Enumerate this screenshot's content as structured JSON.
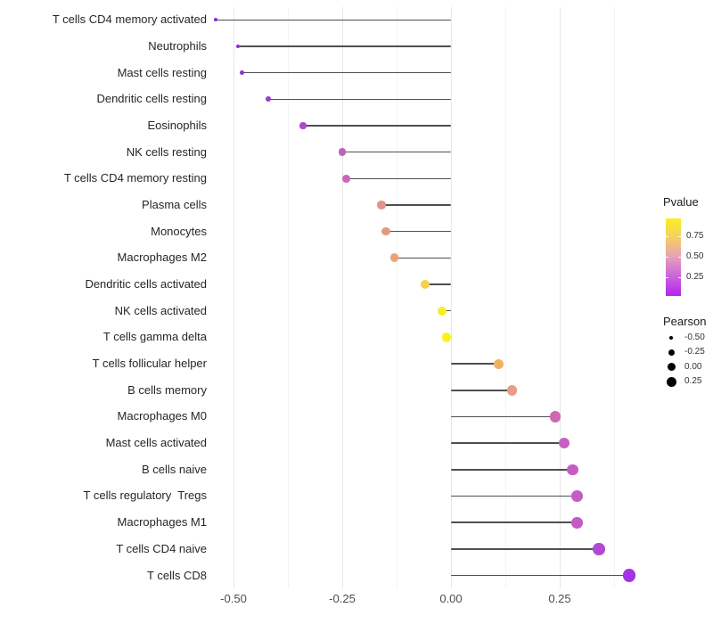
{
  "chart_data": {
    "type": "scatter",
    "subtype": "lollipop",
    "orientation": "horizontal",
    "title": "",
    "xlabel": "",
    "ylabel": "",
    "xlim": [
      -0.58,
      0.46
    ],
    "grid": "vertical major and minor, no axis lines",
    "legend_position": "right",
    "stem_color": "#4f4f4f",
    "x_ticks": [
      {
        "label": "-0.50",
        "value": -0.5
      },
      {
        "label": "-0.25",
        "value": -0.25
      },
      {
        "label": "0.00",
        "value": 0.0
      },
      {
        "label": "0.25",
        "value": 0.25
      }
    ],
    "minor_grid_values": [
      -0.375,
      -0.125,
      0.125,
      0.375
    ],
    "categories": [
      "T cells CD4 memory activated",
      "Neutrophils",
      "Mast cells resting",
      "Dendritic cells resting",
      "Eosinophils",
      "NK cells resting",
      "T cells CD4 memory resting",
      "Plasma cells",
      "Monocytes",
      "Macrophages M2",
      "Dendritic cells activated",
      "NK cells activated",
      "T cells gamma delta",
      "T cells follicular helper",
      "B cells memory",
      "Macrophages M0",
      "Mast cells activated",
      "B cells naive",
      "T cells regulatory  Tregs",
      "Macrophages M1",
      "T cells CD4 naive",
      "T cells CD8"
    ],
    "series": [
      {
        "name": "Pearson",
        "points": [
          {
            "category": "T cells CD4 memory activated",
            "pearson": -0.54,
            "color": "#8826de",
            "radius": 2.0
          },
          {
            "category": "Neutrophils",
            "pearson": -0.49,
            "color": "#8f2bda",
            "radius": 2.3
          },
          {
            "category": "Mast cells resting",
            "pearson": -0.48,
            "color": "#9530d7",
            "radius": 2.4
          },
          {
            "category": "Dendritic cells resting",
            "pearson": -0.42,
            "color": "#a039d2",
            "radius": 2.9
          },
          {
            "category": "Eosinophils",
            "pearson": -0.34,
            "color": "#ae48cb",
            "radius": 3.6
          },
          {
            "category": "NK cells resting",
            "pearson": -0.25,
            "color": "#c260c1",
            "radius": 4.3
          },
          {
            "category": "T cells CD4 memory resting",
            "pearson": -0.24,
            "color": "#c868bc",
            "radius": 4.4
          },
          {
            "category": "Plasma cells",
            "pearson": -0.16,
            "color": "#e2928c",
            "radius": 4.7
          },
          {
            "category": "Monocytes",
            "pearson": -0.15,
            "color": "#e39a84",
            "radius": 4.75
          },
          {
            "category": "Macrophages M2",
            "pearson": -0.13,
            "color": "#eba471",
            "radius": 4.9
          },
          {
            "category": "Dendritic cells activated",
            "pearson": -0.06,
            "color": "#f2d24e",
            "radius": 5.1
          },
          {
            "category": "NK cells activated",
            "pearson": -0.02,
            "color": "#f6ee26",
            "radius": 5.2
          },
          {
            "category": "T cells gamma delta",
            "pearson": -0.01,
            "color": "#f8f21d",
            "radius": 5.25
          },
          {
            "category": "T cells follicular helper",
            "pearson": 0.11,
            "color": "#f0b163",
            "radius": 5.6
          },
          {
            "category": "B cells memory",
            "pearson": 0.14,
            "color": "#e89d86",
            "radius": 5.8
          },
          {
            "category": "Macrophages M0",
            "pearson": 0.24,
            "color": "#cc68b6",
            "radius": 6.1
          },
          {
            "category": "Mast cells activated",
            "pearson": 0.26,
            "color": "#c761c0",
            "radius": 6.2
          },
          {
            "category": "B cells naive",
            "pearson": 0.28,
            "color": "#c55cc4",
            "radius": 6.3
          },
          {
            "category": "T cells regulatory  Tregs",
            "pearson": 0.29,
            "color": "#c45cc6",
            "radius": 6.35
          },
          {
            "category": "Macrophages M1",
            "pearson": 0.29,
            "color": "#c35ac8",
            "radius": 6.4
          },
          {
            "category": "T cells CD4 naive",
            "pearson": 0.34,
            "color": "#b149d3",
            "radius": 6.7
          },
          {
            "category": "T cells CD8",
            "pearson": 0.41,
            "color": "#a335e2",
            "radius": 7.4
          }
        ]
      }
    ]
  },
  "legends": {
    "pvalue": {
      "title": "Pvalue",
      "tick_labels": [
        "0.75",
        "0.50",
        "0.25"
      ],
      "gradient_stops": [
        "#f8ef25",
        "#f5cf62",
        "#e6a0b9",
        "#cb63dc",
        "#b225ef"
      ]
    },
    "pearson": {
      "title": "Pearson",
      "dot_color": "#000000",
      "entries": [
        {
          "label": "-0.50",
          "diameter": 4
        },
        {
          "label": "-0.25",
          "diameter": 7
        },
        {
          "label": "0.00",
          "diameter": 9
        },
        {
          "label": "0.25",
          "diameter": 11
        }
      ]
    }
  }
}
